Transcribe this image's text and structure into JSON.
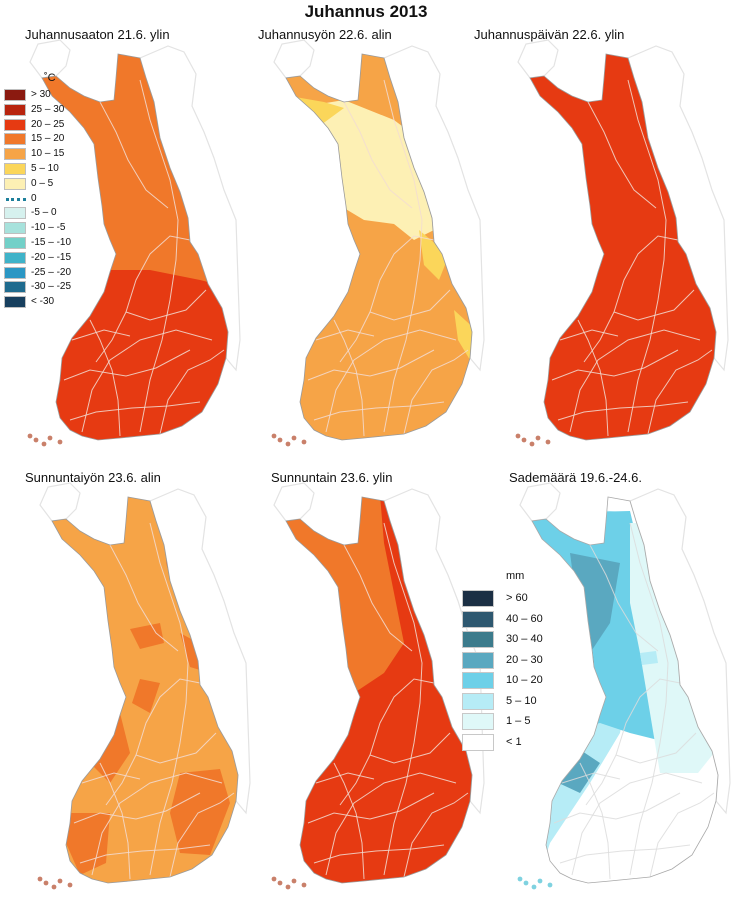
{
  "title": "Juhannus 2013",
  "panels": [
    {
      "title": "Juhannusaaton 21.6. ylin"
    },
    {
      "title": "Juhannusyön 22.6. alin"
    },
    {
      "title": "Juhannuspäivän 22.6. ylin"
    },
    {
      "title": "Sunnuntaiyön 23.6. alin"
    },
    {
      "title": "Sunnuntain 23.6. ylin"
    },
    {
      "title": "Sademäärä 19.6.-24.6."
    }
  ],
  "temp_legend": {
    "unit": "˚C",
    "classes": [
      {
        "label": "> 30",
        "color": "#8b1a10"
      },
      {
        "label": "25 – 30",
        "color": "#b9250f"
      },
      {
        "label": "20 – 25",
        "color": "#e63a12"
      },
      {
        "label": "15 – 20",
        "color": "#f0782a"
      },
      {
        "label": "10 – 15",
        "color": "#f6a447"
      },
      {
        "label": "5 – 10",
        "color": "#fbd65a"
      },
      {
        "label": "0 – 5",
        "color": "#fdf0b4"
      },
      {
        "label": "0",
        "color": "#1d7f9b"
      },
      {
        "label": "-5 – 0",
        "color": "#d6f1ee"
      },
      {
        "label": "-10 – -5",
        "color": "#a7e2dc"
      },
      {
        "label": "-15 – -10",
        "color": "#72d0c8"
      },
      {
        "label": "-20 – -15",
        "color": "#3fb3c9"
      },
      {
        "label": "-25 – -20",
        "color": "#2b97c4"
      },
      {
        "label": "-30 – -25",
        "color": "#1f6b8e"
      },
      {
        "label": "< -30",
        "color": "#173f5e"
      }
    ]
  },
  "rain_legend": {
    "unit": "mm",
    "classes": [
      {
        "label": "> 60",
        "color": "#1b2f44"
      },
      {
        "label": "40 – 60",
        "color": "#2e5870"
      },
      {
        "label": "30 – 40",
        "color": "#3c7b8c"
      },
      {
        "label": "20 – 30",
        "color": "#5aa8c0"
      },
      {
        "label": "10 – 20",
        "color": "#6dd0e8"
      },
      {
        "label": "5 – 10",
        "color": "#b6ecf6"
      },
      {
        "label": "1 – 5",
        "color": "#dff8f8"
      },
      {
        "label": "< 1",
        "color": "#ffffff"
      }
    ]
  },
  "map_colors": {
    "road": "#f2dcd2",
    "neighbour": "#e3e3e3"
  }
}
